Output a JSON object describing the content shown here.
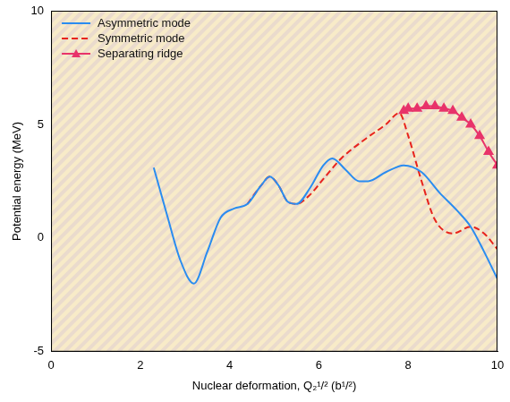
{
  "chart_data": {
    "type": "line",
    "x_label": "Nuclear deformation, Q₂¹/² (b¹/²)",
    "y_label": "Potential energy (MeV)",
    "xlim": [
      0,
      10
    ],
    "xticks": [
      0,
      2,
      4,
      6,
      8,
      10
    ],
    "ylim": [
      -5,
      10
    ],
    "yticks": [
      -5,
      0,
      5,
      10
    ],
    "grid": false,
    "legend": "upper left",
    "series": [
      {
        "name": "Asymmetric mode",
        "color": "#2a8cf0",
        "line_style": "solid",
        "marker": "none",
        "x": [
          2.3,
          2.6,
          2.9,
          3.2,
          3.5,
          3.8,
          4.1,
          4.4,
          4.7,
          4.9,
          5.1,
          5.3,
          5.5,
          5.8,
          6.1,
          6.3,
          6.6,
          6.9,
          7.1,
          7.5,
          7.9,
          8.3,
          8.7,
          9.1,
          9.4,
          9.7,
          10
        ],
        "values": [
          3.1,
          1.0,
          -1.0,
          -2.0,
          -0.6,
          0.9,
          1.3,
          1.5,
          2.3,
          2.7,
          2.3,
          1.6,
          1.5,
          2.2,
          3.2,
          3.5,
          3.0,
          2.5,
          2.5,
          2.9,
          3.2,
          2.9,
          2.0,
          1.2,
          0.5,
          -0.6,
          -1.8
        ]
      },
      {
        "name": "Symmetric mode",
        "color": "#e8231c",
        "line_style": "dashed",
        "marker": "none",
        "x": [
          4.4,
          4.7,
          4.9,
          5.1,
          5.3,
          5.5,
          5.8,
          6.1,
          6.5,
          7.0,
          7.5,
          7.8,
          8.0,
          8.3,
          8.6,
          9.0,
          9.4,
          9.7,
          10
        ],
        "values": [
          1.5,
          2.3,
          2.7,
          2.3,
          1.6,
          1.5,
          1.9,
          2.6,
          3.5,
          4.3,
          5.0,
          5.5,
          4.5,
          2.5,
          0.8,
          0.2,
          0.5,
          0.2,
          -0.5
        ]
      },
      {
        "name": "Separating ridge",
        "color": "#e8336a",
        "line_style": "solid",
        "marker": "triangle",
        "x": [
          7.9,
          8.0,
          8.2,
          8.4,
          8.6,
          8.8,
          9.0,
          9.2,
          9.4,
          9.6,
          9.8,
          10
        ],
        "values": [
          5.6,
          5.7,
          5.7,
          5.8,
          5.8,
          5.7,
          5.6,
          5.3,
          5.0,
          4.5,
          3.8,
          3.2
        ]
      }
    ]
  }
}
